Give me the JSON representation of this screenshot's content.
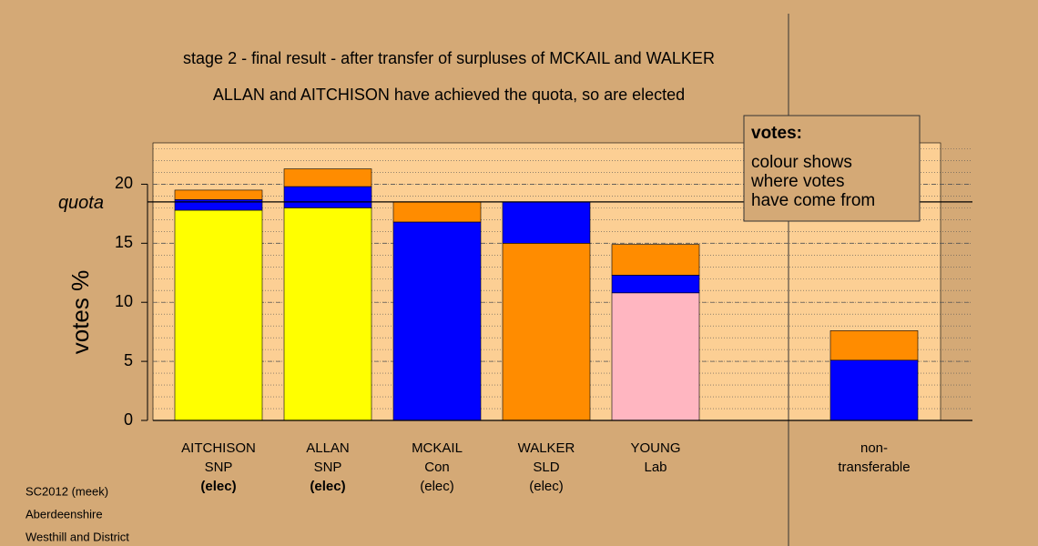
{
  "chart_data": {
    "type": "stacked-bar",
    "title": "stage 2 - final result - after transfer of surpluses of MCKAIL and WALKER",
    "subtitle": "ALLAN and AITCHISON have achieved the quota, so are elected",
    "y_label": "votes %",
    "ylim": [
      0,
      23.5
    ],
    "yticks": [
      0,
      5,
      10,
      15,
      20
    ],
    "minor_grid_step": 1,
    "quota": {
      "value": 18.5,
      "label": "quota"
    },
    "legend": {
      "title": "votes:",
      "lines": [
        "colour shows",
        "where votes",
        "have come from"
      ]
    },
    "bars": [
      {
        "lines": [
          "AITCHISON",
          "SNP"
        ],
        "status": "(elec)",
        "status_bold": true,
        "segments": [
          {
            "color": "#ffff00",
            "value": 17.8
          },
          {
            "color": "#0000ff",
            "value": 0.9
          },
          {
            "color": "#ff8c00",
            "value": 0.8
          }
        ]
      },
      {
        "lines": [
          "ALLAN",
          "SNP"
        ],
        "status": "(elec)",
        "status_bold": true,
        "segments": [
          {
            "color": "#ffff00",
            "value": 18.0
          },
          {
            "color": "#0000ff",
            "value": 1.8
          },
          {
            "color": "#ff8c00",
            "value": 1.5
          }
        ]
      },
      {
        "lines": [
          "MCKAIL",
          "Con"
        ],
        "status": "(elec)",
        "status_bold": false,
        "segments": [
          {
            "color": "#0000ff",
            "value": 16.8
          },
          {
            "color": "#ff8c00",
            "value": 1.7
          }
        ]
      },
      {
        "lines": [
          "WALKER",
          "SLD"
        ],
        "status": "(elec)",
        "status_bold": false,
        "segments": [
          {
            "color": "#ff8c00",
            "value": 15.0
          },
          {
            "color": "#0000ff",
            "value": 3.5
          }
        ]
      },
      {
        "lines": [
          "YOUNG",
          "Lab"
        ],
        "segments": [
          {
            "color": "#ffb6c1",
            "value": 10.8
          },
          {
            "color": "#0000ff",
            "value": 1.5
          },
          {
            "color": "#ff8c00",
            "value": 2.6
          }
        ]
      },
      null,
      {
        "lines": [
          "non-",
          "transferable"
        ],
        "segments": [
          {
            "color": "#0000ff",
            "value": 5.1
          },
          {
            "color": "#ff8c00",
            "value": 2.5
          }
        ]
      }
    ],
    "footer": [
      "SC2012 (meek)",
      "Aberdeenshire",
      "Westhill and District"
    ]
  }
}
